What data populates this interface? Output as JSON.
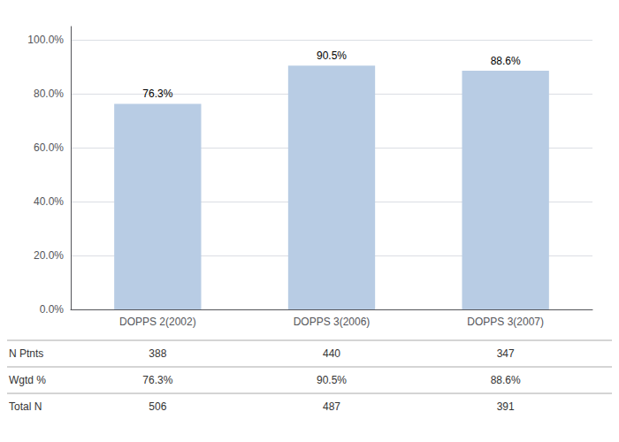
{
  "chart_data": {
    "type": "bar",
    "categories": [
      "DOPPS 2(2002)",
      "DOPPS 3(2006)",
      "DOPPS 3(2007)"
    ],
    "values": [
      76.3,
      90.5,
      88.6
    ],
    "value_labels": [
      "76.3%",
      "90.5%",
      "88.6%"
    ],
    "data_labels": true,
    "color": "#b8cce4",
    "ylim": [
      0,
      105
    ],
    "yticks": [
      {
        "value": 0,
        "label": "0.0%"
      },
      {
        "value": 20,
        "label": "20.0%"
      },
      {
        "value": 40,
        "label": "40.0%"
      },
      {
        "value": 60,
        "label": "60.0%"
      },
      {
        "value": 80,
        "label": "80.0%"
      },
      {
        "value": 100,
        "label": "100.0%"
      }
    ],
    "grid": true,
    "table": {
      "rows": [
        "N Ptnts",
        "Wgtd %",
        "Total N"
      ],
      "data": [
        [
          "388",
          "440",
          "347"
        ],
        [
          "76.3%",
          "90.5%",
          "88.6%"
        ],
        [
          "506",
          "487",
          "391"
        ]
      ]
    }
  }
}
